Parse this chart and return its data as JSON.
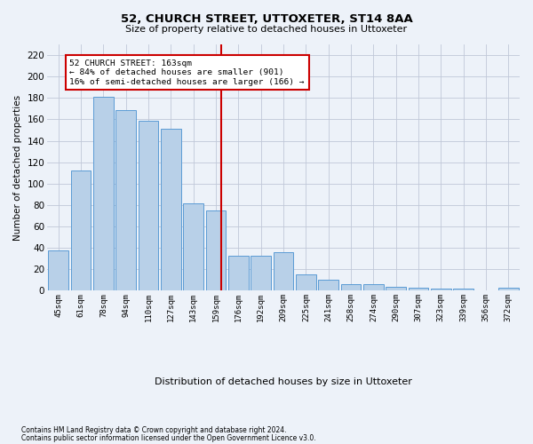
{
  "title1": "52, CHURCH STREET, UTTOXETER, ST14 8AA",
  "title2": "Size of property relative to detached houses in Uttoxeter",
  "xlabel": "Distribution of detached houses by size in Uttoxeter",
  "ylabel": "Number of detached properties",
  "footnote1": "Contains HM Land Registry data © Crown copyright and database right 2024.",
  "footnote2": "Contains public sector information licensed under the Open Government Licence v3.0.",
  "categories": [
    "45sqm",
    "61sqm",
    "78sqm",
    "94sqm",
    "110sqm",
    "127sqm",
    "143sqm",
    "159sqm",
    "176sqm",
    "192sqm",
    "209sqm",
    "225sqm",
    "241sqm",
    "258sqm",
    "274sqm",
    "290sqm",
    "307sqm",
    "323sqm",
    "339sqm",
    "356sqm",
    "372sqm"
  ],
  "values": [
    38,
    112,
    181,
    169,
    159,
    151,
    82,
    75,
    33,
    33,
    36,
    15,
    10,
    6,
    6,
    4,
    3,
    2,
    2,
    0,
    3
  ],
  "bar_color": "#b8d0e8",
  "bar_edgecolor": "#5b9bd5",
  "grid_color": "#c0c8d8",
  "background_color": "#edf2f9",
  "vline_color": "#cc0000",
  "annotation_text": "52 CHURCH STREET: 163sqm\n← 84% of detached houses are smaller (901)\n16% of semi-detached houses are larger (166) →",
  "annotation_box_color": "#ffffff",
  "annotation_box_edgecolor": "#cc0000",
  "ylim": [
    0,
    230
  ],
  "yticks": [
    0,
    20,
    40,
    60,
    80,
    100,
    120,
    140,
    160,
    180,
    200,
    220
  ]
}
